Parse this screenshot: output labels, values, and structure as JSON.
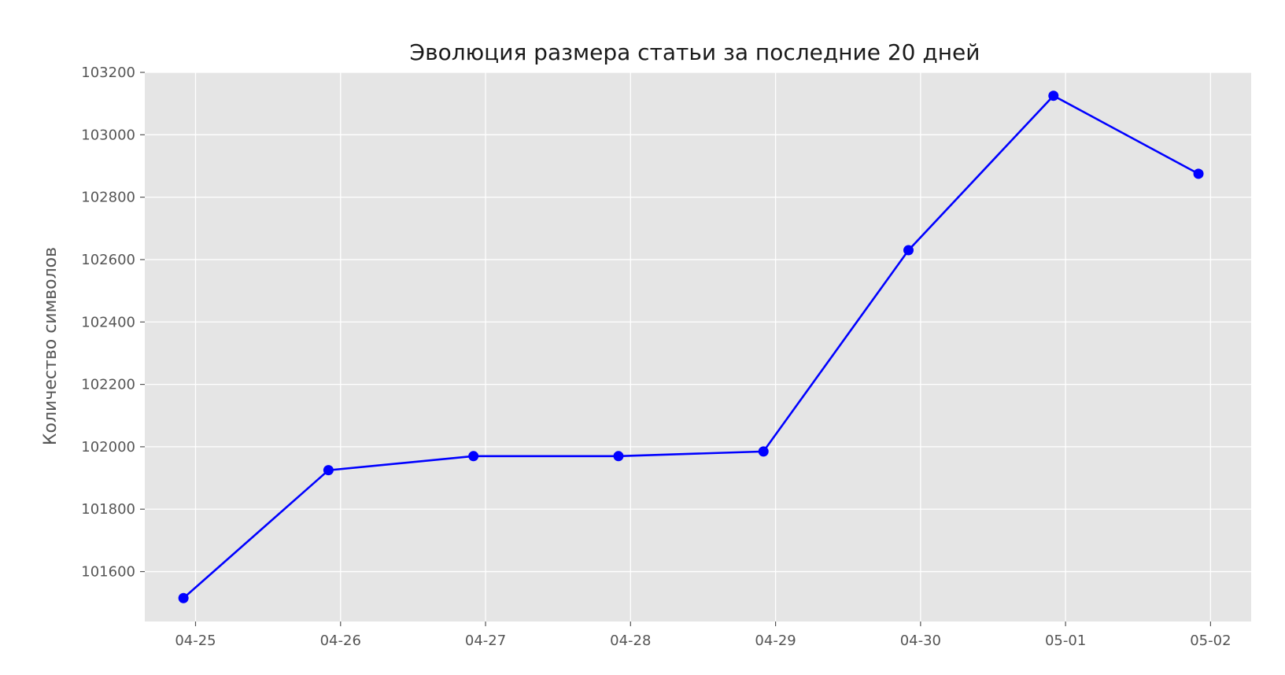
{
  "chart_data": {
    "type": "line",
    "title": "Эволюция размера статьи за последние 20 дней",
    "xlabel": "",
    "ylabel": "Количество символов",
    "x": [
      "2025-04-24T22:00",
      "2025-04-25T22:00",
      "2025-04-26T22:00",
      "2025-04-27T22:00",
      "2025-04-28T22:00",
      "2025-04-29T22:00",
      "2025-04-30T22:00",
      "2025-05-01T22:00"
    ],
    "x_ticks": [
      "04-25",
      "04-26",
      "04-27",
      "04-28",
      "04-29",
      "04-30",
      "05-01",
      "05-02"
    ],
    "y_ticks": [
      101600,
      101800,
      102000,
      102200,
      102400,
      102600,
      102800,
      103000,
      103200
    ],
    "series": [
      {
        "values": [
          101515,
          101925,
          101970,
          101970,
          101985,
          102630,
          103125,
          102875
        ]
      }
    ],
    "ylim": [
      101440,
      103200
    ],
    "grid": true,
    "line_color": "#0000ff",
    "background_color": "#e5e5e5",
    "grid_color": "#ffffff"
  }
}
